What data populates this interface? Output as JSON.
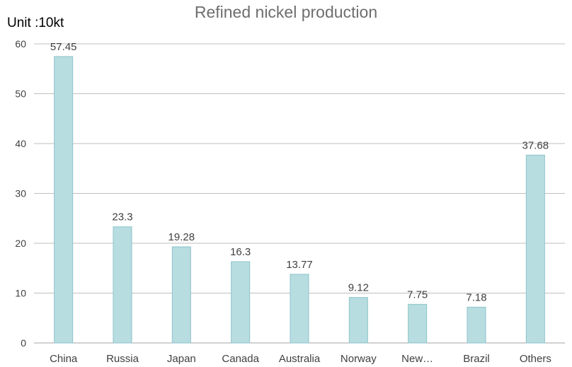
{
  "chart_data": {
    "type": "bar",
    "title": "Refined nickel production",
    "unit_label": "Unit :10kt",
    "categories": [
      "China",
      "Russia",
      "Japan",
      "Canada",
      "Australia",
      "Norway",
      "New…",
      "Brazil",
      "Others"
    ],
    "values": [
      57.45,
      23.3,
      19.28,
      16.3,
      13.77,
      9.12,
      7.75,
      7.18,
      37.68
    ],
    "data_labels": [
      "57.45",
      "23.3",
      "19.28",
      "16.3",
      "13.77",
      "9.12",
      "7.75",
      "7.18",
      "37.68"
    ],
    "ylim": [
      0,
      60
    ],
    "yticks": [
      0,
      10,
      20,
      30,
      40,
      50,
      60
    ],
    "grid": true,
    "legend": "none",
    "xlabel": "",
    "ylabel": "",
    "colors": {
      "bar_fill": "#b7dde1",
      "bar_stroke": "#8cc3c9",
      "grid": "#bfbfbf",
      "axis": "#a6a6a6"
    }
  }
}
